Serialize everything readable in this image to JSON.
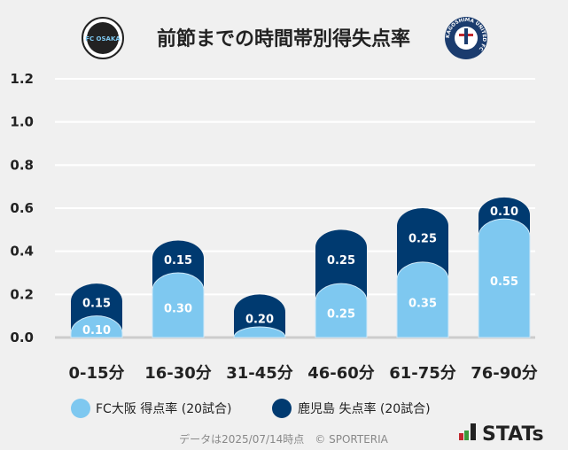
{
  "title": "前節までの時間帯別得失点率",
  "home_logo_text": "FC OSAKA",
  "away_logo_text": "KAGOSHIMA UNITED FC",
  "footer": "データは2025/07/14時点　© SPORTERIA",
  "brand": "STATs",
  "colors": {
    "home": "#7ec8f0",
    "away": "#003a70",
    "grid": "#ffffff",
    "axis": "#cccccc"
  },
  "chart_data": {
    "type": "bar",
    "stacked": true,
    "title": "前節までの時間帯別得失点率",
    "categories": [
      "0-15分",
      "16-30分",
      "31-45分",
      "46-60分",
      "61-75分",
      "76-90分"
    ],
    "series": [
      {
        "name": "FC大阪 得点率 (20試合)",
        "values": [
          0.1,
          0.3,
          0.0,
          0.25,
          0.35,
          0.55
        ]
      },
      {
        "name": "鹿児島 失点率 (20試合)",
        "values": [
          0.15,
          0.15,
          0.2,
          0.25,
          0.25,
          0.1
        ]
      }
    ],
    "ylim": [
      0,
      1.2
    ],
    "yticks": [
      "0.0",
      "0.2",
      "0.4",
      "0.6",
      "0.8",
      "1.0",
      "1.2"
    ],
    "grid": true,
    "legend": "bottom"
  }
}
